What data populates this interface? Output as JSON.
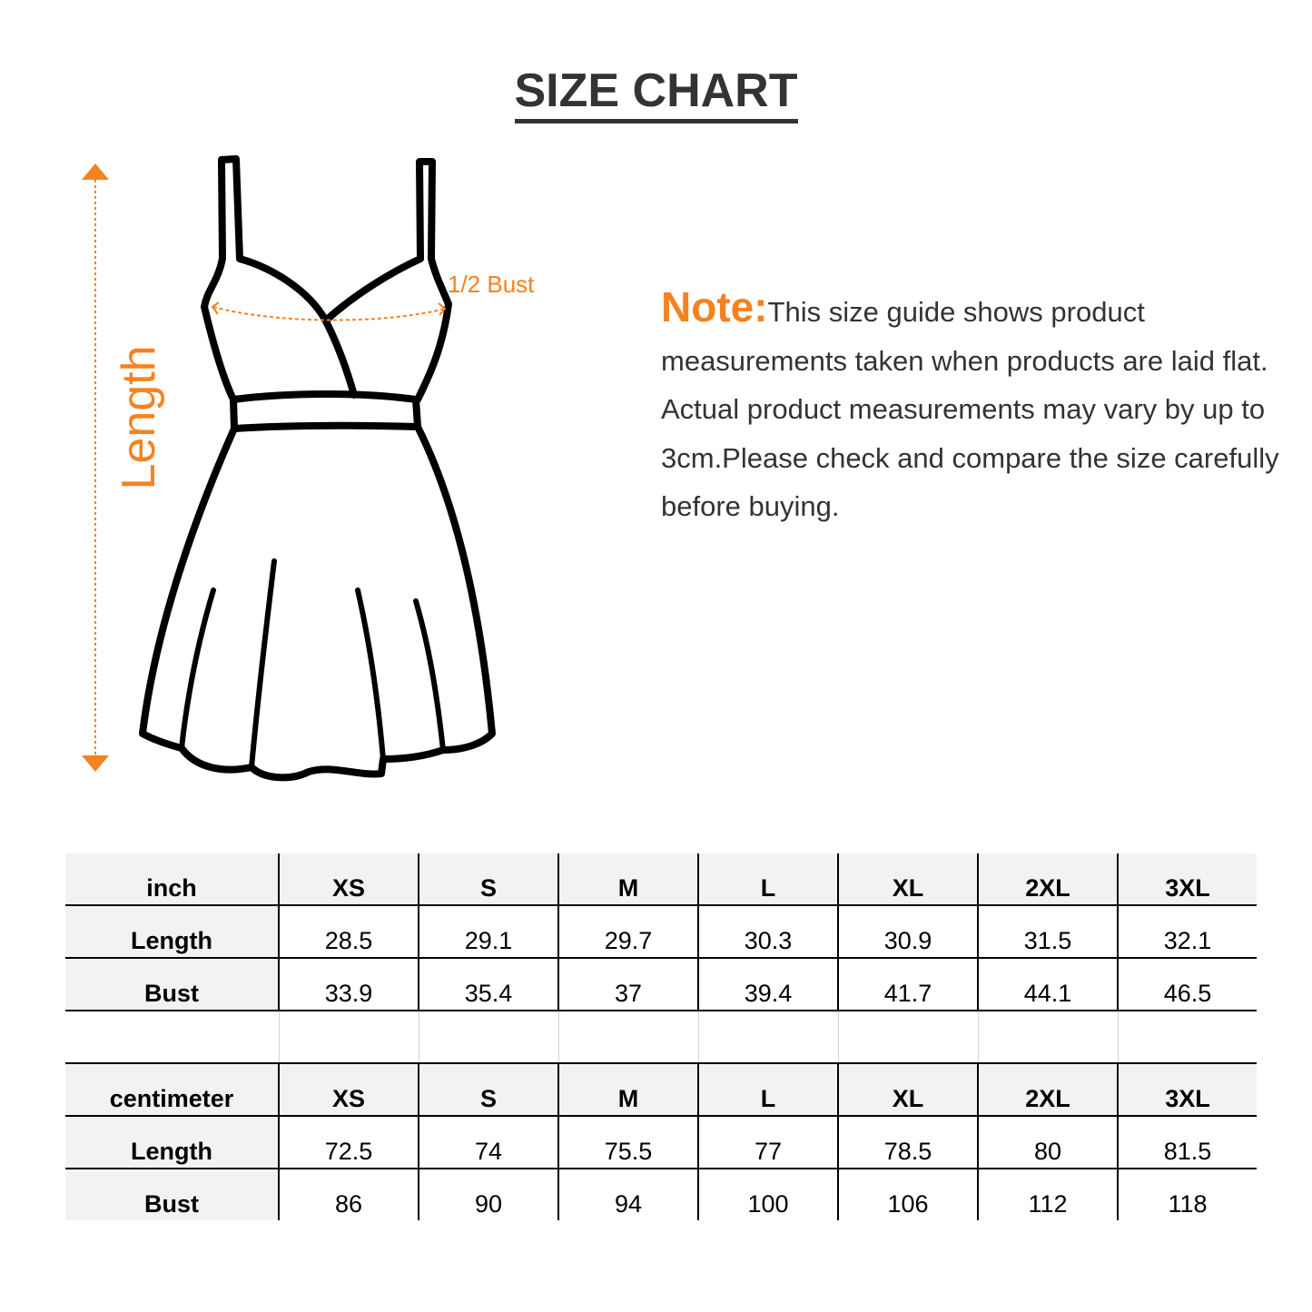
{
  "title": "SIZE CHART",
  "diagram": {
    "length_label": "Length",
    "bust_label": "1/2 Bust",
    "accent_color": "#f58220"
  },
  "note": {
    "label": "Note:",
    "text": "This size guide shows product measurements taken when products are laid flat. Actual product measurements may vary by up to 3cm.Please check and compare the size carefully before buying."
  },
  "tables": [
    {
      "unit": "inch",
      "sizes": [
        "XS",
        "S",
        "M",
        "L",
        "XL",
        "2XL",
        "3XL"
      ],
      "rows": [
        {
          "label": "Length",
          "values": [
            "28.5",
            "29.1",
            "29.7",
            "30.3",
            "30.9",
            "31.5",
            "32.1"
          ]
        },
        {
          "label": "Bust",
          "values": [
            "33.9",
            "35.4",
            "37",
            "39.4",
            "41.7",
            "44.1",
            "46.5"
          ]
        }
      ]
    },
    {
      "unit": "centimeter",
      "sizes": [
        "XS",
        "S",
        "M",
        "L",
        "XL",
        "2XL",
        "3XL"
      ],
      "rows": [
        {
          "label": "Length",
          "values": [
            "72.5",
            "74",
            "75.5",
            "77",
            "78.5",
            "80",
            "81.5"
          ]
        },
        {
          "label": "Bust",
          "values": [
            "86",
            "90",
            "94",
            "100",
            "106",
            "112",
            "118"
          ]
        }
      ]
    }
  ]
}
